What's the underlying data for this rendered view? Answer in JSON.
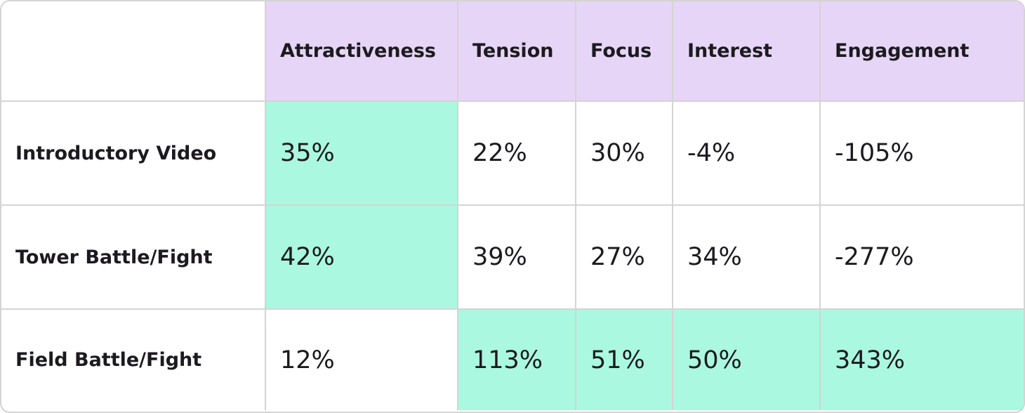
{
  "table": {
    "columns": [
      "Attractiveness",
      "Tension",
      "Focus",
      "Interest",
      "Engagement"
    ],
    "rows": [
      [
        "Introductory Video",
        "35%",
        "22%",
        "30%",
        "-4%",
        "-105%"
      ],
      [
        "Tower Battle/Fight",
        "42%",
        "39%",
        "27%",
        "34%",
        "-277%"
      ],
      [
        "Field Battle/Fight",
        "12%",
        "113%",
        "51%",
        "50%",
        "343%"
      ]
    ]
  }
}
